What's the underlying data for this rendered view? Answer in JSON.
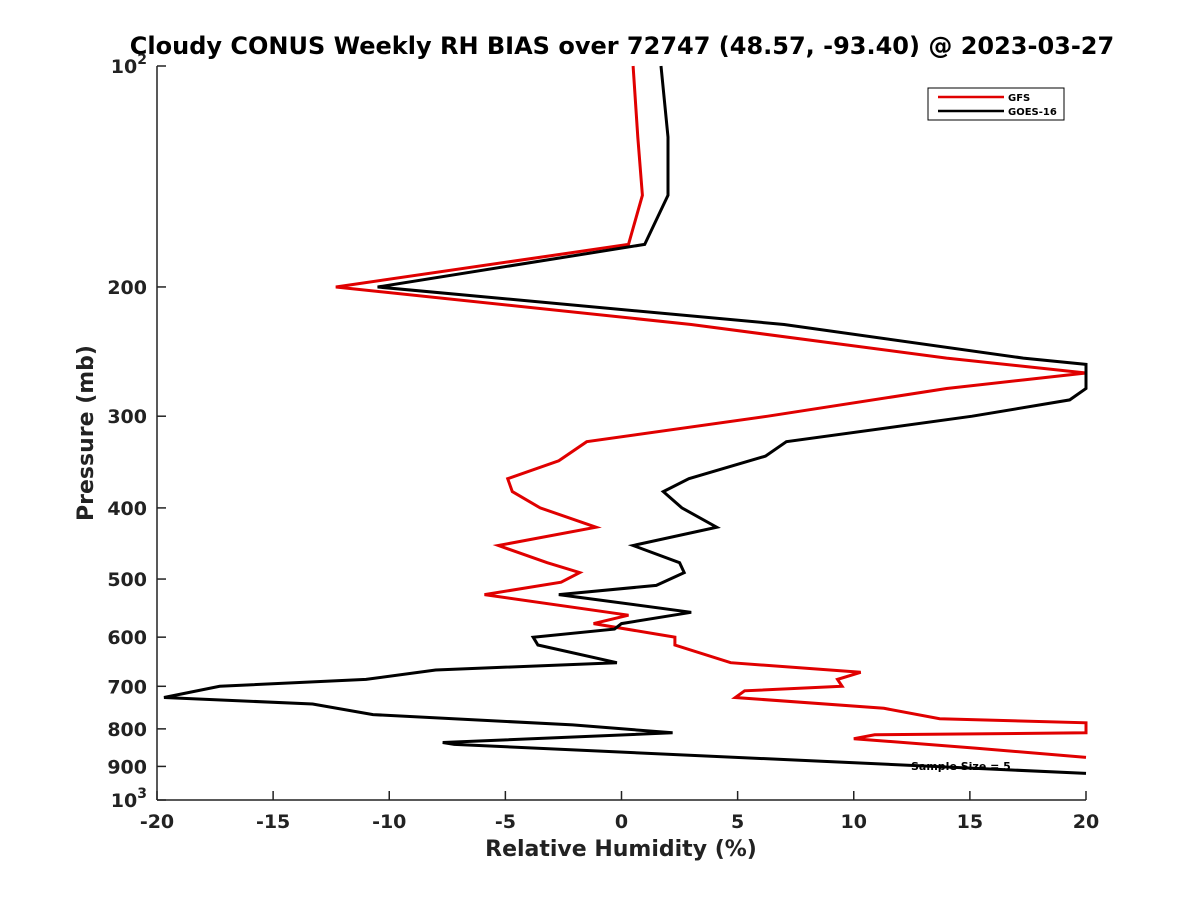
{
  "chart_data": {
    "type": "line",
    "title": "Cloudy CONUS Weekly RH BIAS over 72747 (48.57, -93.40) @ 2023-03-27",
    "xlabel": "Relative Humidity (%)",
    "ylabel": "Pressure (mb)",
    "xlim": [
      -20,
      20
    ],
    "ylim": [
      100,
      1000
    ],
    "y_scale": "log",
    "y_reversed": true,
    "grid": false,
    "legend_position": "top-right",
    "x_ticks": [
      "-20",
      "-15",
      "-10",
      "-5",
      "0",
      "5",
      "10",
      "15",
      "20"
    ],
    "y_ticks": [
      {
        "value": 100,
        "base": "10",
        "exp": "2"
      },
      {
        "value": 200,
        "label": "200"
      },
      {
        "value": 300,
        "label": "300"
      },
      {
        "value": 400,
        "label": "400"
      },
      {
        "value": 500,
        "label": "500"
      },
      {
        "value": 600,
        "label": "600"
      },
      {
        "value": 700,
        "label": "700"
      },
      {
        "value": 800,
        "label": "800"
      },
      {
        "value": 900,
        "label": "900"
      },
      {
        "value": 1000,
        "base": "10",
        "exp": "3"
      }
    ],
    "series": [
      {
        "name": "GFS",
        "color": "#e00000",
        "points": [
          [
            0.5,
            100
          ],
          [
            0.7,
            125
          ],
          [
            0.9,
            150
          ],
          [
            0.3,
            175
          ],
          [
            -12.3,
            200
          ],
          [
            3.0,
            225
          ],
          [
            14.0,
            250
          ],
          [
            20.0,
            262
          ],
          [
            14.0,
            275
          ],
          [
            6.3,
            300
          ],
          [
            -1.5,
            325
          ],
          [
            -2.7,
            345
          ],
          [
            -4.9,
            365
          ],
          [
            -4.7,
            380
          ],
          [
            -3.5,
            400
          ],
          [
            -1.1,
            425
          ],
          [
            -5.3,
            450
          ],
          [
            -3.2,
            475
          ],
          [
            -1.8,
            490
          ],
          [
            -2.6,
            505
          ],
          [
            -5.9,
            525
          ],
          [
            0.3,
            560
          ],
          [
            -1.2,
            575
          ],
          [
            2.3,
            600
          ],
          [
            2.3,
            615
          ],
          [
            4.7,
            650
          ],
          [
            10.3,
            670
          ],
          [
            9.3,
            685
          ],
          [
            9.5,
            700
          ],
          [
            5.3,
            710
          ],
          [
            4.9,
            725
          ],
          [
            11.3,
            750
          ],
          [
            13.7,
            775
          ],
          [
            20.0,
            785
          ],
          [
            20.0,
            810
          ],
          [
            10.9,
            815
          ],
          [
            10.0,
            825
          ],
          [
            15.3,
            850
          ],
          [
            20.0,
            875
          ]
        ]
      },
      {
        "name": "GOES-16",
        "color": "#000000",
        "points": [
          [
            1.7,
            100
          ],
          [
            2.0,
            125
          ],
          [
            2.0,
            150
          ],
          [
            1.0,
            175
          ],
          [
            -10.5,
            200
          ],
          [
            7.0,
            225
          ],
          [
            17.3,
            250
          ],
          [
            20.0,
            255
          ],
          [
            20.0,
            275
          ],
          [
            19.3,
            285
          ],
          [
            15.1,
            300
          ],
          [
            7.1,
            325
          ],
          [
            6.2,
            340
          ],
          [
            2.9,
            365
          ],
          [
            1.8,
            380
          ],
          [
            2.6,
            400
          ],
          [
            4.1,
            425
          ],
          [
            0.5,
            450
          ],
          [
            2.5,
            475
          ],
          [
            2.7,
            490
          ],
          [
            1.5,
            510
          ],
          [
            -2.7,
            525
          ],
          [
            3.0,
            555
          ],
          [
            0.0,
            575
          ],
          [
            -0.3,
            585
          ],
          [
            -3.8,
            600
          ],
          [
            -3.6,
            615
          ],
          [
            -0.2,
            650
          ],
          [
            -8.0,
            665
          ],
          [
            -11.0,
            685
          ],
          [
            -17.3,
            700
          ],
          [
            -19.7,
            725
          ],
          [
            -13.3,
            740
          ],
          [
            -10.7,
            765
          ],
          [
            -2.1,
            790
          ],
          [
            2.2,
            810
          ],
          [
            -7.7,
            835
          ],
          [
            -7.2,
            840
          ],
          [
            20.0,
            920
          ]
        ]
      }
    ],
    "annotation": "Sample Size = 5"
  }
}
